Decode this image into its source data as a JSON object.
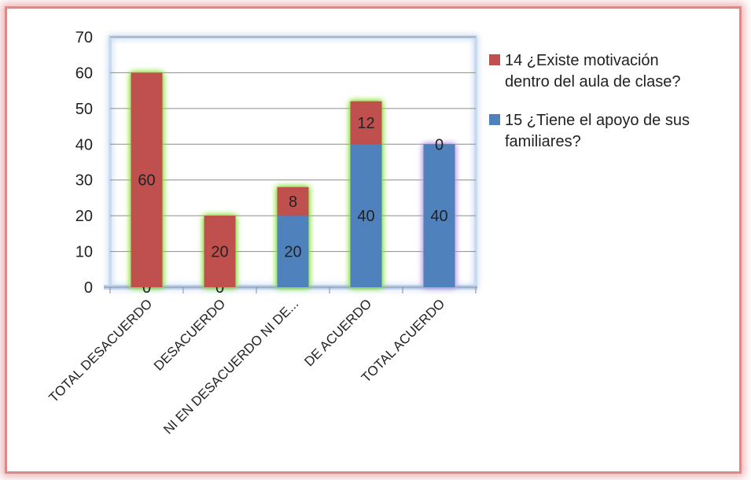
{
  "chart_data": {
    "type": "bar",
    "stacked": true,
    "categories": [
      "TOTAL DESACUERDO",
      "DESACUERDO",
      "NI EN DESACUERDO NI DE...",
      "DE ACUERDO",
      "TOTAL ACUERDO"
    ],
    "series": [
      {
        "name": "15 ¿Tiene el apoyo de sus familiares?",
        "values": [
          0,
          0,
          20,
          40,
          40
        ],
        "color": "#4f81bd"
      },
      {
        "name": "14 ¿Existe motivación dentro del aula de clase?",
        "values": [
          60,
          20,
          8,
          12,
          0
        ],
        "color": "#c0504d"
      }
    ],
    "ylim": [
      0,
      70
    ],
    "yticks": [
      0,
      10,
      20,
      30,
      40,
      50,
      60,
      70
    ],
    "grid": true,
    "legend": "right",
    "legend_entries": [
      {
        "lines": [
          "14 ¿Existe motivación",
          "dentro del aula de clase?"
        ],
        "color": "#c0504d"
      },
      {
        "lines": [
          "15 ¿Tiene el apoyo de sus",
          "familiares?"
        ],
        "color": "#4f81bd"
      }
    ]
  }
}
